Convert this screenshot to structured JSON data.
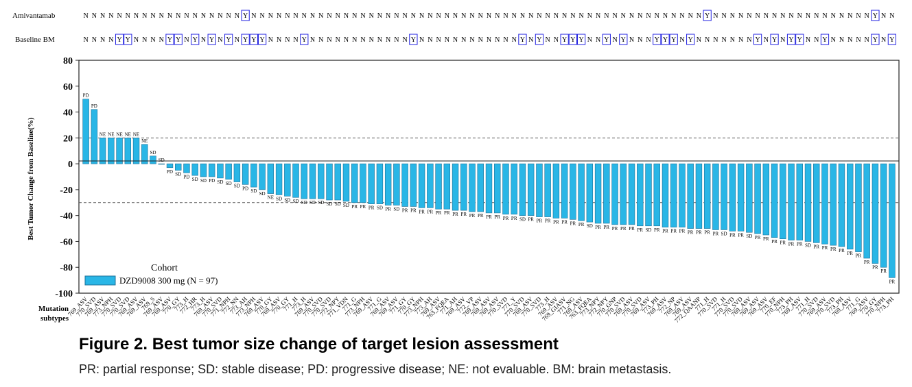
{
  "figure": {
    "title": "Figure 2. Best tumor size change of target lesion assessment",
    "note": "PR: partial response; SD: stable disease; PD: progressive disease; NE: not evaluable. BM: brain metastasis."
  },
  "track_labels": {
    "amivantamab": "Amivantamab",
    "baseline_bm": "Baseline BM"
  },
  "legend": {
    "title": "Cohort",
    "entry": "DZD9008 300 mg (N = 97)"
  },
  "x_axis_label": [
    "Mutation",
    "subtypes"
  ],
  "colors": {
    "bar": "#29b6e6",
    "bar_stroke": "#1b6f96",
    "flag_box": "#2020e0",
    "threshold_line": "#555555"
  },
  "chart_data": {
    "type": "bar",
    "ylabel": "Best Tumor Change from Baseline(%)",
    "ylim": [
      -100,
      80
    ],
    "yticks": [
      -100,
      -80,
      -60,
      -40,
      -20,
      0,
      20,
      40,
      60,
      80
    ],
    "reference_lines": [
      20,
      -30
    ],
    "values": [
      50,
      42,
      20,
      20,
      20,
      20,
      20,
      15,
      6,
      0,
      -3,
      -5,
      -7,
      -9,
      -10,
      -10,
      -11,
      -12,
      -14,
      -16,
      -18,
      -20,
      -23,
      -24,
      -25,
      -26,
      -27,
      -27,
      -27,
      -28,
      -28,
      -29,
      -30,
      -30,
      -31,
      -31,
      -32,
      -32,
      -33,
      -33,
      -34,
      -34,
      -35,
      -35,
      -36,
      -36,
      -37,
      -37,
      -38,
      -38,
      -39,
      -39,
      -40,
      -40,
      -41,
      -41,
      -42,
      -42,
      -43,
      -44,
      -45,
      -46,
      -46,
      -47,
      -47,
      -47,
      -48,
      -48,
      -48,
      -49,
      -49,
      -49,
      -50,
      -50,
      -50,
      -51,
      -51,
      -52,
      -52,
      -53,
      -54,
      -55,
      -57,
      -58,
      -59,
      -59,
      -60,
      -61,
      -62,
      -63,
      -64,
      -66,
      -68,
      -73,
      -77,
      -80,
      -88
    ],
    "responses": [
      "PD",
      "PD",
      "NE",
      "NE",
      "NE",
      "NE",
      "NE",
      "NE",
      "SD",
      "SD",
      "PD",
      "SD",
      "PD",
      "SD",
      "SD",
      "PD",
      "SD",
      "SD",
      "SD",
      "PD",
      "SD",
      "SD",
      "NE",
      "SD",
      "SD",
      "SD",
      "SD",
      "SD",
      "SD",
      "SD",
      "SD",
      "SD",
      "PR",
      "PR",
      "PR",
      "SD",
      "PR",
      "SD",
      "PR",
      "PR",
      "PR",
      "PR",
      "PR",
      "PR",
      "PR",
      "PR",
      "PR",
      "PR",
      "PR",
      "PR",
      "PR",
      "PR",
      "SD",
      "PR",
      "PR",
      "PR",
      "PR",
      "PR",
      "PR",
      "PR",
      "SD",
      "PR",
      "PR",
      "PR",
      "PR",
      "PR",
      "PR",
      "SD",
      "PR",
      "PR",
      "PR",
      "PR",
      "PR",
      "PR",
      "PR",
      "PR",
      "SD",
      "PR",
      "PR",
      "SD",
      "PR",
      "PR",
      "PR",
      "PR",
      "PR",
      "PR",
      "SD",
      "PR",
      "PR",
      "PR",
      "PR",
      "PR",
      "PR",
      "PR",
      "PR",
      "PR",
      "PR"
    ],
    "mutation_subtypes": [
      "769_ASV",
      "770_SVD",
      "769_ASV",
      "773_NPH",
      "770_SVD",
      "770_SVD",
      "769_ASV",
      "769_ASV",
      "769_S",
      "769_ASV",
      "769_ASV",
      "770_GY",
      "773_H",
      "772_HR",
      "773_H",
      "769_ASV",
      "770_SVD",
      "771_NPH",
      "772_NN",
      "773_AH",
      "773_NPH",
      "769_ASV",
      "770_GY",
      "769_ASV",
      "770_GY",
      "771_H",
      "773_H",
      "769_ASV",
      "770_SVD",
      "770_SVD",
      "772_NPY",
      "771_VDN",
      "771_G",
      "773_NPH",
      "769_ASV",
      "771_G",
      "769_ASV",
      "769_ASV",
      "771_GY",
      "770_GY",
      "773_NPH",
      "773_AH",
      "769_ASV",
      "763_FQEA",
      "771_AH",
      "769_ASV",
      "772_VP",
      "769_ASV",
      "769_ASV",
      "769_ASV",
      "770_SVD",
      "771_Y",
      "770_SVD",
      "769_ASV",
      "770_SVD",
      "773_H",
      "769_ASV",
      "769_GIASV",
      "771_NG",
      "769_ASV",
      "763_FQEA",
      "773_NPY",
      "772_NPY",
      "770_GNP",
      "770_SVD",
      "769_ASV",
      "770_SVD",
      "769_ASV",
      "773_PH",
      "769_ASV",
      "772_NP",
      "769_ASV",
      "769_ASV",
      "772_QAANP",
      "771_H",
      "770_SVD",
      "771_H",
      "770_SVD",
      "770_SVD",
      "769_ASV",
      "769_ASV",
      "769_ASV",
      "770_EF",
      "770_NPH",
      "773_PH",
      "769_ASV",
      "771_H",
      "770_SVD",
      "769_ASV",
      "770_SVD",
      "773_PH",
      "769_ASV",
      "771_G",
      "769_ASV",
      "770_GY",
      "770_NPH",
      "773_PH"
    ],
    "amivantamab": [
      "N",
      "N",
      "N",
      "N",
      "N",
      "N",
      "N",
      "N",
      "N",
      "N",
      "N",
      "N",
      "N",
      "N",
      "N",
      "N",
      "N",
      "N",
      "N",
      "Y",
      "N",
      "N",
      "N",
      "N",
      "N",
      "N",
      "N",
      "N",
      "N",
      "N",
      "N",
      "N",
      "N",
      "N",
      "N",
      "N",
      "N",
      "N",
      "N",
      "N",
      "N",
      "N",
      "N",
      "N",
      "N",
      "N",
      "N",
      "N",
      "N",
      "N",
      "N",
      "N",
      "N",
      "N",
      "N",
      "N",
      "N",
      "N",
      "N",
      "N",
      "N",
      "N",
      "N",
      "N",
      "N",
      "N",
      "N",
      "N",
      "N",
      "N",
      "N",
      "N",
      "N",
      "N",
      "Y",
      "N",
      "N",
      "N",
      "N",
      "N",
      "N",
      "N",
      "N",
      "N",
      "N",
      "N",
      "N",
      "N",
      "N",
      "N",
      "N",
      "N",
      "N",
      "N",
      "Y",
      "N",
      "N"
    ],
    "baseline_bm": [
      "N",
      "N",
      "N",
      "N",
      "Y",
      "Y",
      "N",
      "N",
      "N",
      "N",
      "Y",
      "Y",
      "N",
      "Y",
      "N",
      "Y",
      "N",
      "Y",
      "N",
      "Y",
      "Y",
      "Y",
      "N",
      "N",
      "N",
      "N",
      "Y",
      "N",
      "N",
      "N",
      "N",
      "N",
      "N",
      "N",
      "N",
      "N",
      "N",
      "N",
      "N",
      "Y",
      "N",
      "N",
      "N",
      "N",
      "N",
      "N",
      "N",
      "N",
      "N",
      "N",
      "N",
      "N",
      "Y",
      "N",
      "Y",
      "N",
      "N",
      "Y",
      "Y",
      "Y",
      "N",
      "N",
      "Y",
      "N",
      "Y",
      "N",
      "N",
      "N",
      "Y",
      "Y",
      "Y",
      "N",
      "Y",
      "N",
      "N",
      "N",
      "N",
      "N",
      "N",
      "N",
      "Y",
      "N",
      "Y",
      "N",
      "Y",
      "Y",
      "N",
      "N",
      "Y",
      "N",
      "N",
      "N",
      "N",
      "N",
      "Y",
      "N",
      "Y"
    ]
  }
}
